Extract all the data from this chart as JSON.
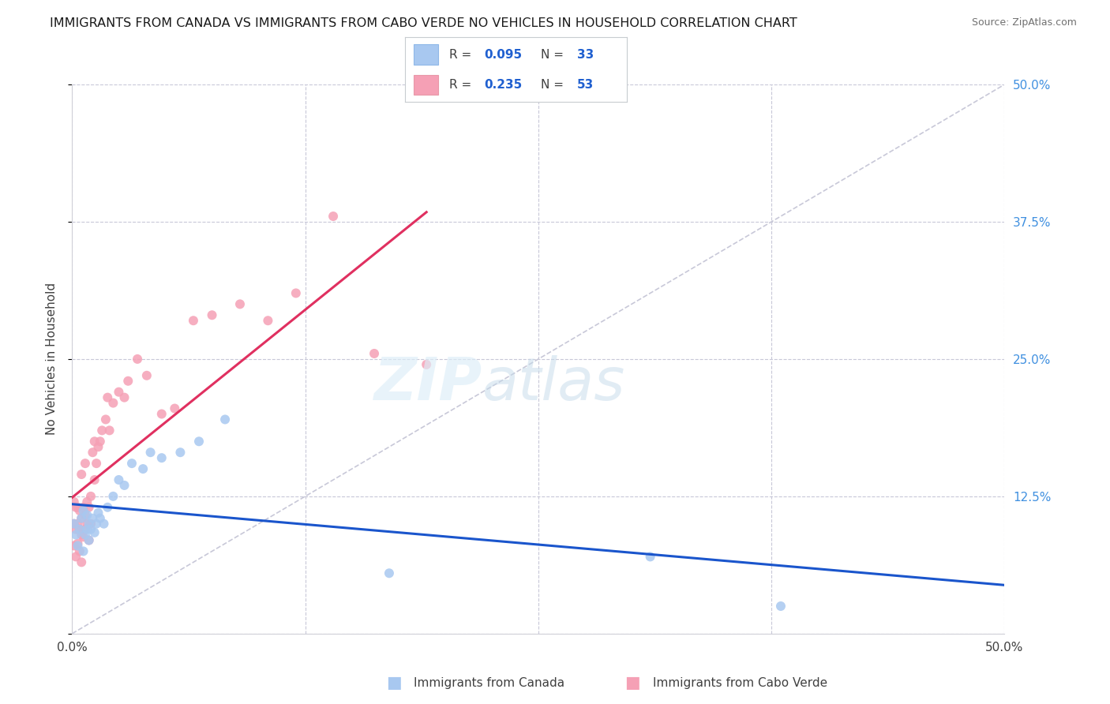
{
  "title": "IMMIGRANTS FROM CANADA VS IMMIGRANTS FROM CABO VERDE NO VEHICLES IN HOUSEHOLD CORRELATION CHART",
  "source": "Source: ZipAtlas.com",
  "ylabel": "No Vehicles in Household",
  "xlim": [
    0.0,
    0.5
  ],
  "ylim": [
    0.0,
    0.5
  ],
  "canada_R": 0.095,
  "canada_N": 33,
  "caboverde_R": 0.235,
  "caboverde_N": 53,
  "canada_color": "#a8c8f0",
  "caboverde_color": "#f5a0b5",
  "canada_line_color": "#1a55cc",
  "caboverde_line_color": "#e03060",
  "diagonal_color": "#c8c8d8",
  "canada_x": [
    0.001,
    0.002,
    0.003,
    0.004,
    0.005,
    0.006,
    0.006,
    0.007,
    0.008,
    0.008,
    0.009,
    0.009,
    0.01,
    0.011,
    0.012,
    0.013,
    0.014,
    0.015,
    0.017,
    0.019,
    0.022,
    0.025,
    0.028,
    0.032,
    0.038,
    0.042,
    0.048,
    0.058,
    0.068,
    0.082,
    0.17,
    0.31,
    0.38
  ],
  "canada_y": [
    0.1,
    0.09,
    0.08,
    0.095,
    0.105,
    0.075,
    0.112,
    0.09,
    0.095,
    0.108,
    0.085,
    0.1,
    0.095,
    0.105,
    0.092,
    0.1,
    0.11,
    0.105,
    0.1,
    0.115,
    0.125,
    0.14,
    0.135,
    0.155,
    0.15,
    0.165,
    0.16,
    0.165,
    0.175,
    0.195,
    0.055,
    0.07,
    0.025
  ],
  "caboverde_x": [
    0.001,
    0.001,
    0.001,
    0.002,
    0.002,
    0.002,
    0.003,
    0.003,
    0.003,
    0.004,
    0.004,
    0.004,
    0.005,
    0.005,
    0.005,
    0.005,
    0.006,
    0.006,
    0.007,
    0.007,
    0.007,
    0.008,
    0.008,
    0.009,
    0.009,
    0.01,
    0.01,
    0.011,
    0.012,
    0.012,
    0.013,
    0.014,
    0.015,
    0.016,
    0.018,
    0.019,
    0.02,
    0.022,
    0.025,
    0.028,
    0.03,
    0.035,
    0.04,
    0.048,
    0.055,
    0.065,
    0.075,
    0.09,
    0.105,
    0.12,
    0.14,
    0.162,
    0.19
  ],
  "caboverde_y": [
    0.08,
    0.1,
    0.12,
    0.07,
    0.095,
    0.115,
    0.082,
    0.1,
    0.115,
    0.075,
    0.095,
    0.112,
    0.065,
    0.09,
    0.105,
    0.145,
    0.088,
    0.115,
    0.095,
    0.108,
    0.155,
    0.1,
    0.12,
    0.085,
    0.115,
    0.1,
    0.125,
    0.165,
    0.14,
    0.175,
    0.155,
    0.17,
    0.175,
    0.185,
    0.195,
    0.215,
    0.185,
    0.21,
    0.22,
    0.215,
    0.23,
    0.25,
    0.235,
    0.2,
    0.205,
    0.285,
    0.29,
    0.3,
    0.285,
    0.31,
    0.38,
    0.255,
    0.245
  ],
  "grid_color": "#c8c8d8",
  "spine_color": "#d0d0d8",
  "right_tick_color": "#4090e0",
  "title_fontsize": 11.5,
  "source_fontsize": 9,
  "tick_fontsize": 11,
  "ylabel_fontsize": 11,
  "legend_fontsize": 11,
  "marker_size": 75
}
